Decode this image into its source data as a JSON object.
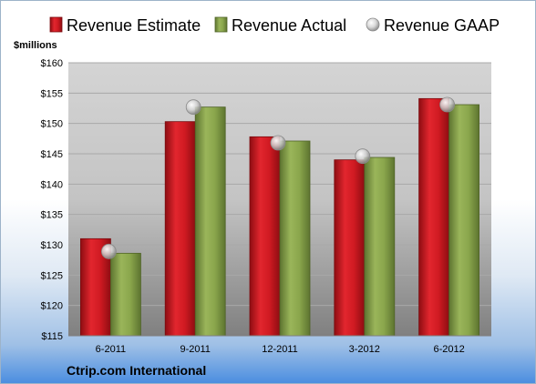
{
  "chart_data": {
    "type": "bar",
    "categories": [
      "6-2011",
      "9-2011",
      "12-2011",
      "3-2012",
      "6-2012"
    ],
    "series": [
      {
        "name": "Revenue Estimate",
        "values": [
          131.0,
          150.3,
          147.8,
          144.0,
          154.1
        ],
        "color": "#c0141c"
      },
      {
        "name": "Revenue Actual",
        "values": [
          128.6,
          152.7,
          147.1,
          144.4,
          153.1
        ],
        "color": "#7f9a41"
      },
      {
        "name": "Revenue GAAP",
        "type": "scatter",
        "values": [
          128.9,
          152.7,
          146.8,
          144.6,
          153.1
        ],
        "color": "#c8c8c8"
      }
    ],
    "ylim": [
      115,
      160
    ],
    "yticks": [
      "$115",
      "$120",
      "$125",
      "$130",
      "$135",
      "$140",
      "$145",
      "$150",
      "$155",
      "$160"
    ],
    "ylabel": "$millions",
    "legend_position": "top",
    "grid": true
  },
  "footer": {
    "company": "Ctrip.com International"
  }
}
